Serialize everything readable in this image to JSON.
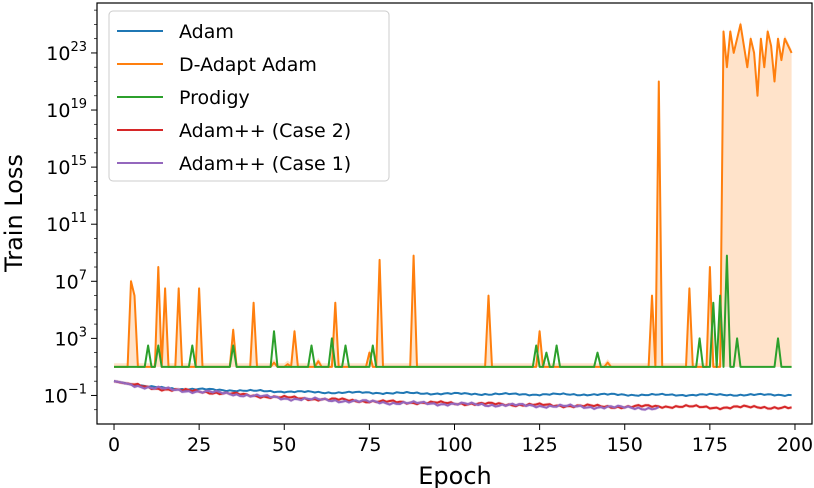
{
  "chart_data": {
    "type": "line",
    "title": "",
    "xlabel": "Epoch",
    "ylabel": "Train Loss",
    "xlim": [
      -5,
      205
    ],
    "ylim_log10": [
      -3,
      26.5
    ],
    "yscale": "log",
    "x_ticks": [
      0,
      25,
      50,
      75,
      100,
      125,
      150,
      175,
      200
    ],
    "y_ticks": [
      {
        "base": "10",
        "exp": "−1",
        "log10": -1
      },
      {
        "base": "10",
        "exp": "3",
        "log10": 3
      },
      {
        "base": "10",
        "exp": "7",
        "log10": 7
      },
      {
        "base": "10",
        "exp": "11",
        "log10": 11
      },
      {
        "base": "10",
        "exp": "15",
        "log10": 15
      },
      {
        "base": "10",
        "exp": "19",
        "log10": 19
      },
      {
        "base": "10",
        "exp": "23",
        "log10": 23
      }
    ],
    "legend_position": "upper-left",
    "grid": false,
    "series": [
      {
        "name": "Adam",
        "color": "#1f77b4",
        "log10_points": [
          [
            0,
            0
          ],
          [
            10,
            -0.4
          ],
          [
            20,
            -0.55
          ],
          [
            30,
            -0.6
          ],
          [
            40,
            -0.68
          ],
          [
            50,
            -0.72
          ],
          [
            60,
            -0.78
          ],
          [
            70,
            -0.8
          ],
          [
            80,
            -0.82
          ],
          [
            90,
            -0.85
          ],
          [
            100,
            -0.88
          ],
          [
            110,
            -0.9
          ],
          [
            120,
            -0.92
          ],
          [
            130,
            -0.93
          ],
          [
            140,
            -0.93
          ],
          [
            150,
            -0.95
          ],
          [
            160,
            -0.96
          ],
          [
            170,
            -0.96
          ],
          [
            180,
            -0.95
          ],
          [
            190,
            -0.96
          ],
          [
            199,
            -0.95
          ]
        ]
      },
      {
        "name": "D-Adapt Adam",
        "color": "#ff7f0e",
        "baseline_log10": 1.0,
        "spikes_log10": [
          [
            5,
            7
          ],
          [
            6,
            6
          ],
          [
            13,
            8
          ],
          [
            15,
            6.5
          ],
          [
            19,
            6.5
          ],
          [
            25,
            6.5
          ],
          [
            35,
            3.6
          ],
          [
            41,
            5.5
          ],
          [
            47,
            1.3
          ],
          [
            51,
            1.2
          ],
          [
            53,
            3.5
          ],
          [
            60,
            1.4
          ],
          [
            65,
            5.5
          ],
          [
            75,
            2
          ],
          [
            78,
            8.5
          ],
          [
            88,
            8.8
          ],
          [
            110,
            6
          ],
          [
            125,
            3.5
          ],
          [
            145,
            1.3
          ],
          [
            158,
            6
          ],
          [
            160,
            21
          ],
          [
            169,
            6.5
          ],
          [
            175,
            8
          ],
          [
            179,
            24.5
          ],
          [
            181,
            24
          ],
          [
            185,
            25
          ],
          [
            189,
            22
          ],
          [
            195,
            24
          ],
          [
            199,
            23
          ]
        ],
        "plateau_log10": [
          [
            179,
            24.5
          ],
          [
            180,
            22
          ],
          [
            181,
            24.5
          ],
          [
            182,
            23
          ],
          [
            183,
            24
          ],
          [
            184,
            25
          ],
          [
            185,
            23.5
          ],
          [
            186,
            22
          ],
          [
            187,
            24
          ],
          [
            188,
            23
          ],
          [
            189,
            20
          ],
          [
            190,
            24
          ],
          [
            191,
            22
          ],
          [
            192,
            24.5
          ],
          [
            193,
            23.5
          ],
          [
            194,
            21
          ],
          [
            195,
            24
          ],
          [
            196,
            22.5
          ],
          [
            197,
            24
          ],
          [
            198,
            23.5
          ],
          [
            199,
            23
          ]
        ]
      },
      {
        "name": "Prodigy",
        "color": "#2ca02c",
        "baseline_log10": 1.0,
        "spikes_log10": [
          [
            10,
            2.5
          ],
          [
            13,
            2.5
          ],
          [
            23,
            2.5
          ],
          [
            35,
            2.5
          ],
          [
            47,
            3.5
          ],
          [
            58,
            2.5
          ],
          [
            64,
            3
          ],
          [
            68,
            2.5
          ],
          [
            76,
            2.5
          ],
          [
            124,
            2.5
          ],
          [
            127,
            2
          ],
          [
            130,
            2.5
          ],
          [
            142,
            2
          ],
          [
            172,
            3
          ],
          [
            176,
            5.5
          ],
          [
            178,
            6
          ],
          [
            180,
            8.8
          ],
          [
            183,
            3
          ],
          [
            195,
            3
          ]
        ]
      },
      {
        "name": "Adam++ (Case 2)",
        "color": "#d62728",
        "log10_points": [
          [
            0,
            0
          ],
          [
            10,
            -0.45
          ],
          [
            20,
            -0.65
          ],
          [
            30,
            -0.8
          ],
          [
            40,
            -1.0
          ],
          [
            50,
            -1.15
          ],
          [
            60,
            -1.25
          ],
          [
            70,
            -1.35
          ],
          [
            80,
            -1.45
          ],
          [
            90,
            -1.5
          ],
          [
            100,
            -1.55
          ],
          [
            110,
            -1.6
          ],
          [
            120,
            -1.65
          ],
          [
            130,
            -1.7
          ],
          [
            140,
            -1.75
          ],
          [
            150,
            -1.8
          ],
          [
            160,
            -1.75
          ],
          [
            170,
            -1.8
          ],
          [
            180,
            -1.85
          ],
          [
            190,
            -1.8
          ],
          [
            199,
            -1.9
          ]
        ]
      },
      {
        "name": "Adam++ (Case 1)",
        "color": "#9467bd",
        "log10_points": [
          [
            0,
            0
          ],
          [
            10,
            -0.45
          ],
          [
            20,
            -0.65
          ],
          [
            30,
            -0.8
          ],
          [
            40,
            -1.0
          ],
          [
            50,
            -1.2
          ],
          [
            60,
            -1.3
          ],
          [
            70,
            -1.4
          ],
          [
            80,
            -1.5
          ],
          [
            90,
            -1.55
          ],
          [
            100,
            -1.6
          ],
          [
            110,
            -1.65
          ],
          [
            120,
            -1.7
          ],
          [
            130,
            -1.75
          ],
          [
            140,
            -1.8
          ],
          [
            150,
            -1.85
          ],
          [
            160,
            -1.9
          ]
        ]
      }
    ]
  }
}
